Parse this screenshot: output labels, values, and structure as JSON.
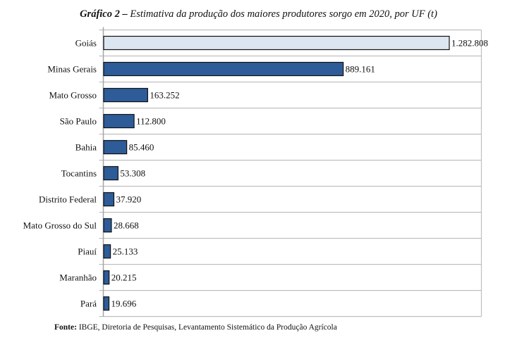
{
  "title": {
    "prefix": "Gráfico 2 –",
    "text": "Estimativa da produção dos maiores produtores sorgo em 2020, por UF (t)"
  },
  "source": {
    "label": "Fonte:",
    "text": "IBGE, Diretoria de Pesquisas, Levantamento Sistemático da Produção Agrícola"
  },
  "colors": {
    "bar": "#2E5C99",
    "highlight_bar": "#DCE6F1",
    "bar_border": "#111111",
    "grid": "#BFBFBF"
  },
  "chart_data": {
    "type": "bar",
    "orientation": "horizontal",
    "title": "Gráfico 2 – Estimativa da produção dos maiores produtores sorgo em 2020, por UF (t)",
    "xlabel": "",
    "ylabel": "",
    "categories": [
      "Goiás",
      "Minas Gerais",
      "Mato Grosso",
      "São Paulo",
      "Bahia",
      "Tocantins",
      "Distrito Federal",
      "Mato Grosso do Sul",
      "Piauí",
      "Maranhão",
      "Pará"
    ],
    "values": [
      1282808,
      889161,
      163252,
      112800,
      85460,
      53308,
      37920,
      28668,
      25133,
      20215,
      19696
    ],
    "labels": [
      "1.282.808",
      "889.161",
      "163.252",
      "112.800",
      "85.460",
      "53.308",
      "37.920",
      "28.668",
      "25.133",
      "20.215",
      "19.696"
    ],
    "highlight": [
      "Goiás"
    ],
    "xlim": [
      0,
      1282808
    ],
    "grid": "horizontal separators",
    "legend": "none"
  }
}
